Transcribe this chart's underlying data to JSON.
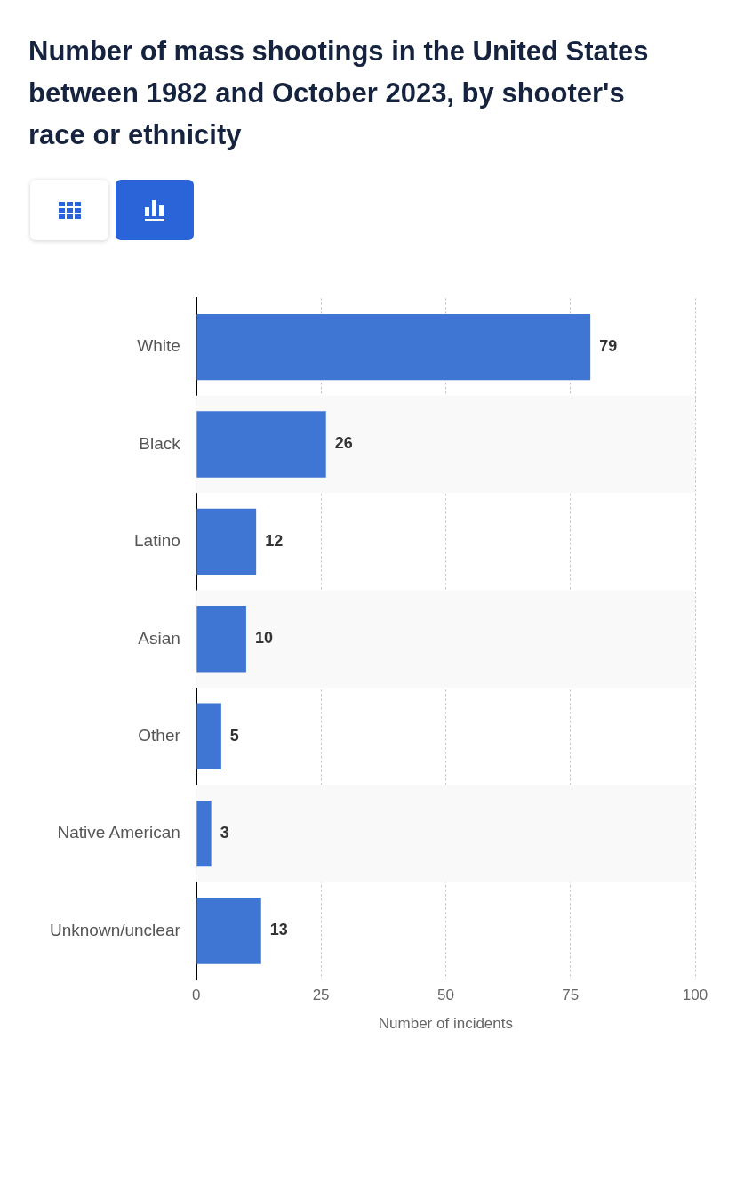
{
  "chart_data": {
    "type": "bar",
    "orientation": "horizontal",
    "title": "Number of mass shootings in the United States between 1982 and October 2023, by shooter's race or ethnicity",
    "xlabel": "Number of incidents",
    "categories": [
      "White",
      "Black",
      "Latino",
      "Asian",
      "Other",
      "Native American",
      "Unknown/unclear"
    ],
    "values": [
      79,
      26,
      12,
      10,
      5,
      3,
      13
    ],
    "color": "#3f76d4",
    "xlim": [
      0,
      100
    ],
    "xticks": [
      0,
      25,
      50,
      75,
      100
    ],
    "grid": "x",
    "data_labels": true,
    "legend": false
  }
}
